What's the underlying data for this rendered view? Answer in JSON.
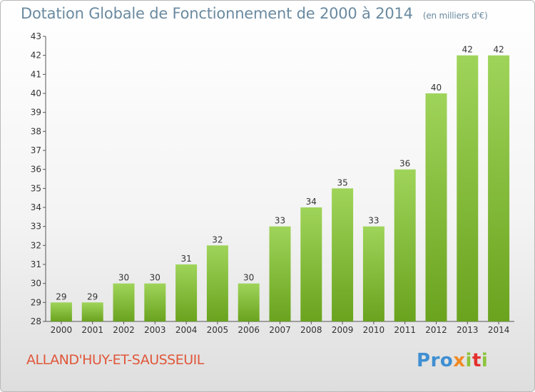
{
  "header": {
    "title": "Dotation Globale de Fonctionnement de 2000 à 2014",
    "subtitle": "(en milliers d'€)"
  },
  "footer": {
    "commune": "ALLAND'HUY-ET-SAUSSEUIL",
    "logo_letters": [
      "P",
      "r",
      "o",
      "x",
      "i",
      "t",
      "i"
    ]
  },
  "colors": {
    "bar_top": "#9fd45a",
    "bar_bottom": "#6aa31e",
    "title": "#6a8aa0",
    "commune": "#e0573a"
  },
  "chart_data": {
    "type": "bar",
    "categories": [
      "2000",
      "2001",
      "2002",
      "2003",
      "2004",
      "2005",
      "2006",
      "2007",
      "2008",
      "2009",
      "2010",
      "2011",
      "2012",
      "2013",
      "2014"
    ],
    "values": [
      29,
      29,
      30,
      30,
      31,
      32,
      30,
      33,
      34,
      35,
      33,
      36,
      40,
      42,
      42
    ],
    "data_labels": [
      "29",
      "29",
      "30",
      "30",
      "31",
      "32",
      "30",
      "33",
      "34",
      "35",
      "33",
      "36",
      "40",
      "42",
      "42"
    ],
    "y_ticks": [
      "28",
      "29",
      "30",
      "31",
      "32",
      "33",
      "34",
      "35",
      "36",
      "37",
      "38",
      "39",
      "40",
      "41",
      "42",
      "43"
    ],
    "ylim": [
      28,
      43
    ],
    "grid": false,
    "legend": "none"
  }
}
